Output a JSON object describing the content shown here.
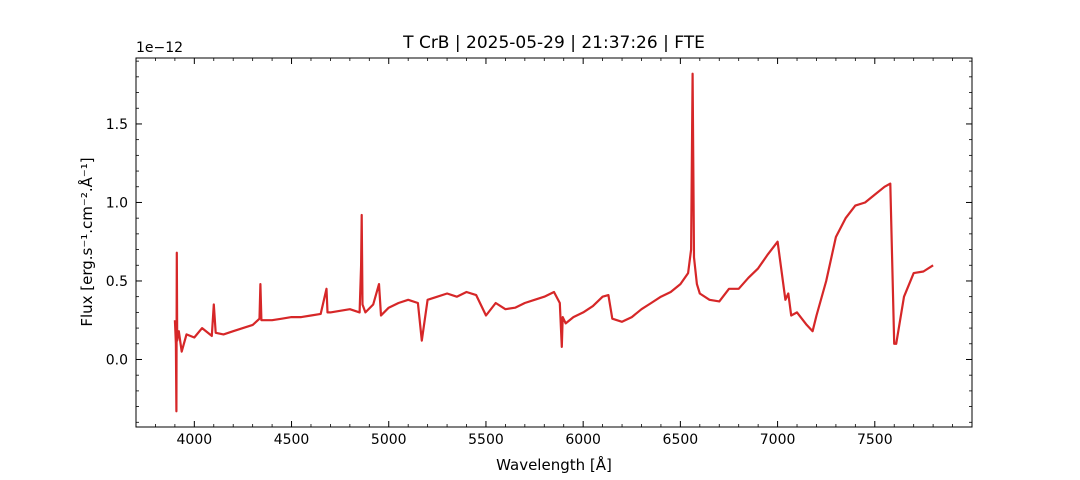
{
  "chart_data": {
    "type": "line",
    "title": "T CrB | 2025-05-29 | 21:37:26 | FTE",
    "xlabel": "Wavelength [Å]",
    "ylabel": "Flux [erg.s⁻¹.cm⁻².Å⁻¹]",
    "y_offset_text": "1e−12",
    "xlim": [
      3700,
      8000
    ],
    "ylim": [
      -0.43,
      1.92
    ],
    "y_scale_factor": 1e-12,
    "grid": false,
    "legend": "none",
    "x_ticks": [
      4000,
      4500,
      5000,
      5500,
      6000,
      6500,
      7000,
      7500
    ],
    "y_ticks": [
      0.0,
      0.5,
      1.0,
      1.5
    ],
    "x_tick_labels": [
      "4000",
      "4500",
      "5000",
      "5500",
      "6000",
      "6500",
      "7000",
      "7500"
    ],
    "y_tick_labels": [
      "0.0",
      "0.5",
      "1.0",
      "1.5"
    ],
    "series": [
      {
        "color": "#d62728",
        "x": [
          3900,
          3905,
          3908,
          3910,
          3912,
          3915,
          3920,
          3935,
          3960,
          4000,
          4040,
          4090,
          4100,
          4110,
          4150,
          4200,
          4250,
          4300,
          4335,
          4340,
          4345,
          4400,
          4450,
          4500,
          4550,
          4600,
          4650,
          4680,
          4685,
          4700,
          4750,
          4800,
          4850,
          4858,
          4861,
          4865,
          4880,
          4920,
          4950,
          4960,
          5000,
          5050,
          5100,
          5150,
          5170,
          5200,
          5250,
          5300,
          5350,
          5400,
          5450,
          5500,
          5550,
          5600,
          5650,
          5700,
          5750,
          5800,
          5850,
          5880,
          5890,
          5895,
          5910,
          5950,
          6000,
          6050,
          6100,
          6130,
          6150,
          6200,
          6250,
          6300,
          6350,
          6400,
          6450,
          6500,
          6540,
          6555,
          6563,
          6570,
          6585,
          6600,
          6650,
          6700,
          6750,
          6800,
          6850,
          6900,
          6950,
          7000,
          7040,
          7055,
          7070,
          7100,
          7150,
          7180,
          7200,
          7250,
          7300,
          7350,
          7400,
          7450,
          7500,
          7550,
          7580,
          7600,
          7610,
          7650,
          7700,
          7750,
          7800
        ],
        "y": [
          0.25,
          0.1,
          -0.33,
          0.68,
          0.12,
          0.15,
          0.18,
          0.05,
          0.16,
          0.14,
          0.2,
          0.15,
          0.35,
          0.17,
          0.16,
          0.18,
          0.2,
          0.22,
          0.26,
          0.48,
          0.25,
          0.25,
          0.26,
          0.27,
          0.27,
          0.28,
          0.29,
          0.45,
          0.3,
          0.3,
          0.31,
          0.32,
          0.3,
          0.6,
          0.92,
          0.35,
          0.3,
          0.35,
          0.48,
          0.28,
          0.33,
          0.36,
          0.38,
          0.36,
          0.12,
          0.38,
          0.4,
          0.42,
          0.4,
          0.43,
          0.41,
          0.28,
          0.36,
          0.32,
          0.33,
          0.36,
          0.38,
          0.4,
          0.43,
          0.36,
          0.08,
          0.27,
          0.23,
          0.27,
          0.3,
          0.34,
          0.4,
          0.41,
          0.26,
          0.24,
          0.27,
          0.32,
          0.36,
          0.4,
          0.43,
          0.48,
          0.55,
          0.7,
          1.82,
          0.65,
          0.48,
          0.42,
          0.38,
          0.37,
          0.45,
          0.45,
          0.52,
          0.58,
          0.67,
          0.75,
          0.38,
          0.42,
          0.28,
          0.3,
          0.22,
          0.18,
          0.28,
          0.5,
          0.78,
          0.9,
          0.98,
          1.0,
          1.05,
          1.1,
          1.12,
          0.1,
          0.1,
          0.4,
          0.55,
          0.56,
          0.6
        ]
      }
    ]
  }
}
